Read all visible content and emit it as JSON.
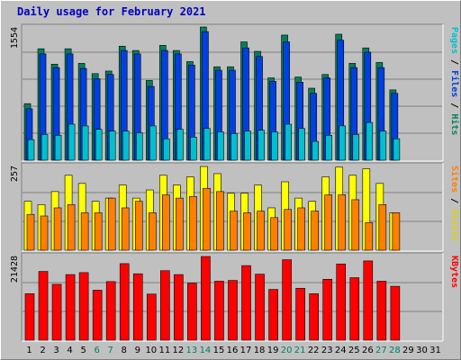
{
  "title": "Daily usage for February 2021",
  "colors": {
    "panel": "#c0c0c0",
    "grid": "#808080",
    "hits": "#00c0d0",
    "files": "#0040e0",
    "pages": "#00b0f0",
    "visits": "#ffff00",
    "sites": "#ff8000",
    "kbytes": "#ff0000",
    "weekend_day_label": "#008060",
    "weekday_label": "#000000"
  },
  "chart_data": [
    {
      "type": "bar",
      "panel": "hits-files-pages",
      "ymax_label": "1554",
      "right_label": {
        "pages": "Pages",
        "sep1": " / ",
        "files": "Files",
        "sep2": " / ",
        "hits": "Hits"
      },
      "series": [
        {
          "name": "Hits",
          "values": [
            660,
            1300,
            1120,
            1300,
            1130,
            1010,
            1040,
            1330,
            1280,
            930,
            1340,
            1280,
            1150,
            1554,
            1090,
            1090,
            1380,
            1270,
            960,
            1460,
            970,
            840,
            1000,
            1470,
            1130,
            1310,
            1140,
            820
          ]
        },
        {
          "name": "Files",
          "values": [
            600,
            1240,
            1080,
            1240,
            1070,
            950,
            1000,
            1280,
            1240,
            860,
            1280,
            1240,
            1110,
            1500,
            1050,
            1050,
            1310,
            1210,
            920,
            1380,
            910,
            780,
            960,
            1400,
            1080,
            1260,
            1080,
            780
          ]
        },
        {
          "name": "Pages",
          "values": [
            240,
            300,
            290,
            420,
            400,
            360,
            340,
            340,
            320,
            400,
            250,
            360,
            270,
            370,
            330,
            310,
            340,
            350,
            330,
            420,
            370,
            220,
            290,
            400,
            300,
            440,
            340,
            250
          ]
        }
      ],
      "ymax": 1554
    },
    {
      "type": "bar",
      "panel": "visits-sites",
      "ymax_label": "257",
      "right_label": {
        "sites": "Sites",
        "sep": " / ",
        "visits": "Visits"
      },
      "series": [
        {
          "name": "Visits",
          "values": [
            150,
            140,
            180,
            230,
            205,
            150,
            160,
            200,
            160,
            185,
            230,
            200,
            225,
            257,
            235,
            175,
            175,
            200,
            130,
            210,
            160,
            150,
            225,
            255,
            230,
            250,
            205,
            115
          ]
        },
        {
          "name": "Sites",
          "values": [
            110,
            105,
            130,
            140,
            115,
            115,
            160,
            130,
            150,
            115,
            170,
            160,
            165,
            190,
            180,
            120,
            115,
            120,
            100,
            125,
            130,
            120,
            170,
            170,
            155,
            85,
            140,
            115
          ]
        }
      ],
      "ymax": 257
    },
    {
      "type": "bar",
      "panel": "kbytes",
      "ymax_label": "21428",
      "right_label": "KBytes",
      "series": [
        {
          "name": "KBytes",
          "values": [
            11900,
            17600,
            14300,
            16800,
            17300,
            12800,
            15000,
            19600,
            17000,
            11800,
            17800,
            16800,
            14600,
            21428,
            15100,
            15300,
            19100,
            16900,
            13000,
            20600,
            13300,
            11900,
            15600,
            19500,
            16000,
            20300,
            15100,
            13800
          ]
        }
      ],
      "ymax": 21428
    }
  ],
  "x_axis": {
    "days": [
      "1",
      "2",
      "3",
      "4",
      "5",
      "6",
      "7",
      "8",
      "9",
      "10",
      "11",
      "12",
      "13",
      "14",
      "15",
      "16",
      "17",
      "18",
      "19",
      "20",
      "21",
      "22",
      "23",
      "24",
      "25",
      "26",
      "27",
      "28",
      "29",
      "30",
      "31"
    ],
    "weekend_days": [
      6,
      7,
      13,
      14,
      20,
      21,
      27,
      28
    ]
  }
}
